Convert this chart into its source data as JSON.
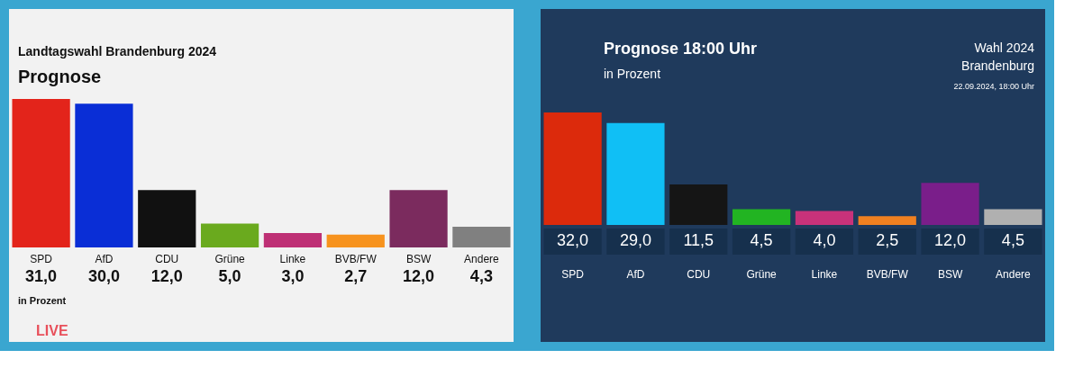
{
  "chart_data": [
    {
      "type": "bar",
      "title": "Landtagswahl Brandenburg 2024",
      "subtitle": "Prognose",
      "categories": [
        "SPD",
        "AfD",
        "CDU",
        "Grüne",
        "Linke",
        "BVB/FW",
        "BSW",
        "Andere"
      ],
      "values": [
        31.0,
        30.0,
        12.0,
        5.0,
        3.0,
        2.7,
        12.0,
        4.3
      ],
      "value_labels": [
        "31,0",
        "30,0",
        "12,0",
        "5,0",
        "3,0",
        "2,7",
        "12,0",
        "4,3"
      ],
      "colors": [
        "#e3241b",
        "#0a2ed6",
        "#111111",
        "#6aaa1e",
        "#be3075",
        "#f7931e",
        "#7b2b5e",
        "#808080"
      ],
      "annotations": [
        "in Prozent",
        "LIVE"
      ]
    },
    {
      "type": "bar",
      "title": "Prognose 18:00 Uhr",
      "subtitle": "in Prozent",
      "categories": [
        "SPD",
        "AfD",
        "CDU",
        "Grüne",
        "Linke",
        "BVB/FW",
        "BSW",
        "Andere"
      ],
      "values": [
        32.0,
        29.0,
        11.5,
        4.5,
        4.0,
        2.5,
        12.0,
        4.5
      ],
      "value_labels": [
        "32,0",
        "29,0",
        "11,5",
        "4,5",
        "4,0",
        "2,5",
        "12,0",
        "4,5"
      ],
      "colors": [
        "#dc2a0c",
        "#10bff5",
        "#151515",
        "#22b422",
        "#c8327a",
        "#f08020",
        "#7a1e8a",
        "#b0b0b0"
      ],
      "annotations": [
        "Wahl 2024",
        "Brandenburg",
        "22.09.2024, 18:00 Uhr"
      ]
    }
  ]
}
